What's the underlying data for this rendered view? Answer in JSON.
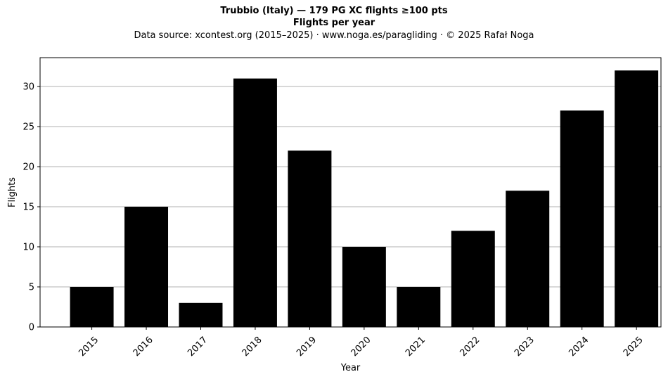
{
  "chart_data": {
    "type": "bar",
    "title_line1": "Trubbio (Italy)  —  179 PG XC flights ≥100 pts",
    "title_line2": "Flights per year",
    "subtitle": "Data source: xcontest.org (2015–2025)  ·  www.noga.es/paragliding  ·  © 2025 Rafał Noga",
    "xlabel": "Year",
    "ylabel": "Flights",
    "categories": [
      "2015",
      "2016",
      "2017",
      "2018",
      "2019",
      "2020",
      "2021",
      "2022",
      "2023",
      "2024",
      "2025"
    ],
    "values": [
      5,
      15,
      3,
      31,
      22,
      10,
      5,
      12,
      17,
      27,
      32
    ],
    "ylim": [
      0,
      33.6
    ],
    "yticks": [
      0,
      5,
      10,
      15,
      20,
      25,
      30
    ],
    "grid": "y",
    "bar_color": "#000000",
    "grid_color": "#b0b0b0"
  }
}
